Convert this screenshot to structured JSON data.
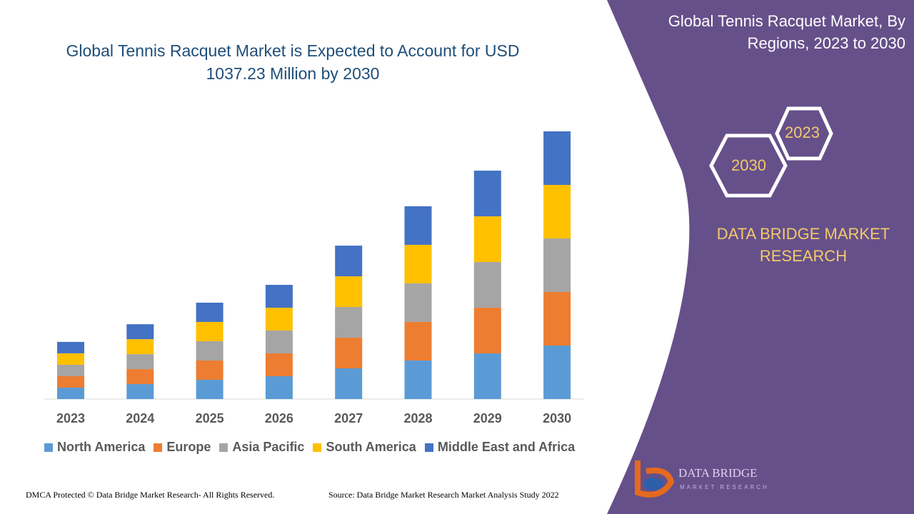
{
  "title": "Global Tennis Racquet Market is Expected to Account for USD 1037.23 Million by 2030",
  "side_panel": {
    "title": "Global Tennis Racquet Market, By Regions, 2023 to 2030",
    "hex_years": [
      "2023",
      "2030"
    ],
    "brand": "DATA BRIDGE MARKET RESEARCH",
    "logo_text": "DATA BRIDGE MARKET RESEARCH",
    "panel_color": "#66508a"
  },
  "footer": {
    "left": "DMCA Protected © Data Bridge Market Research- All Rights Reserved.",
    "right": "Source: Data Bridge Market Research Market Analysis Study 2022"
  },
  "chart_data": {
    "type": "bar",
    "stacked": true,
    "title": "Global Tennis Racquet Market is Expected to Account for USD 1037.23 Million by 2030",
    "xlabel": "",
    "ylabel": "",
    "y_axis_shown": false,
    "grid": false,
    "legend_position": "bottom",
    "categories": [
      "2023",
      "2024",
      "2025",
      "2026",
      "2027",
      "2028",
      "2029",
      "2030"
    ],
    "series": [
      {
        "name": "North America",
        "color": "#5b9bd5",
        "values": [
          44.3,
          58,
          74.7,
          88.5,
          118.9,
          149.4,
          177,
          207.4
        ]
      },
      {
        "name": "Europe",
        "color": "#ed7d31",
        "values": [
          44.3,
          58,
          74.7,
          88.5,
          118.9,
          149.4,
          177,
          207.4
        ]
      },
      {
        "name": "Asia Pacific",
        "color": "#a5a5a5",
        "values": [
          44.3,
          58,
          74.7,
          88.5,
          118.9,
          149.4,
          177,
          207.4
        ]
      },
      {
        "name": "South America",
        "color": "#ffc000",
        "values": [
          44.3,
          58,
          74.7,
          88.5,
          118.9,
          149.4,
          177,
          207.5
        ]
      },
      {
        "name": "Middle East and Africa",
        "color": "#4472c4",
        "values": [
          44.3,
          58,
          74.7,
          88.5,
          118.9,
          149.4,
          177,
          207.5
        ]
      }
    ]
  }
}
